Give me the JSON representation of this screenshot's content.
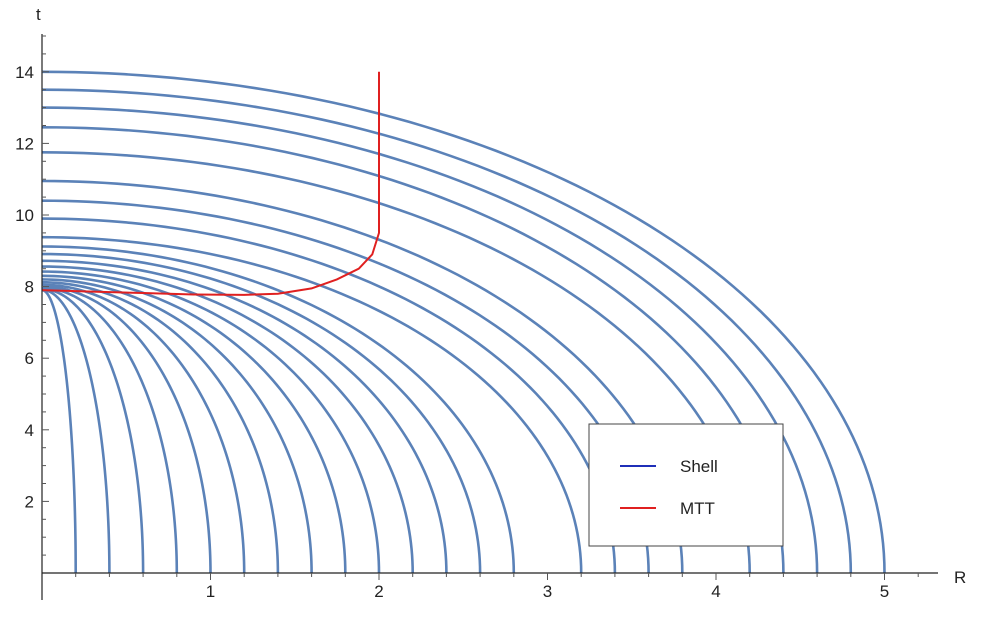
{
  "chart_data": {
    "type": "line",
    "title": "",
    "xlabel": "R",
    "ylabel": "t",
    "xlim": [
      0,
      5.3
    ],
    "ylim": [
      0,
      15
    ],
    "xticks": [
      1,
      2,
      3,
      4,
      5
    ],
    "yticks": [
      2,
      4,
      6,
      8,
      10,
      12,
      14
    ],
    "legend_position": "bottom-right",
    "legend": [
      {
        "name": "Shell",
        "color": "#1f2fb8"
      },
      {
        "name": "MTT",
        "color": "#e02020"
      }
    ],
    "series": [
      {
        "name": "Shell",
        "color": "#5b82b8",
        "shells": [
          {
            "R0": 0.2,
            "t_top": 7.9
          },
          {
            "R0": 0.4,
            "t_top": 7.91
          },
          {
            "R0": 0.6,
            "t_top": 7.93
          },
          {
            "R0": 0.8,
            "t_top": 7.96
          },
          {
            "R0": 1.0,
            "t_top": 8.0
          },
          {
            "R0": 1.2,
            "t_top": 8.05
          },
          {
            "R0": 1.4,
            "t_top": 8.12
          },
          {
            "R0": 1.6,
            "t_top": 8.2
          },
          {
            "R0": 1.8,
            "t_top": 8.3
          },
          {
            "R0": 2.0,
            "t_top": 8.42
          },
          {
            "R0": 2.2,
            "t_top": 8.56
          },
          {
            "R0": 2.4,
            "t_top": 8.72
          },
          {
            "R0": 2.6,
            "t_top": 8.91
          },
          {
            "R0": 2.8,
            "t_top": 9.12
          },
          {
            "R0": 3.2,
            "t_top": 9.38
          },
          {
            "R0": 3.4,
            "t_top": 9.9
          },
          {
            "R0": 3.6,
            "t_top": 10.4
          },
          {
            "R0": 3.8,
            "t_top": 10.95
          },
          {
            "R0": 4.2,
            "t_top": 11.75
          },
          {
            "R0": 4.4,
            "t_top": 12.45
          },
          {
            "R0": 4.6,
            "t_top": 13.0
          },
          {
            "R0": 4.8,
            "t_top": 13.5
          },
          {
            "R0": 5.0,
            "t_top": 14.0
          }
        ]
      },
      {
        "name": "MTT",
        "color": "#e02020",
        "points": [
          {
            "x": 0.0,
            "y": 7.9
          },
          {
            "x": 0.3,
            "y": 7.86
          },
          {
            "x": 0.6,
            "y": 7.82
          },
          {
            "x": 0.9,
            "y": 7.78
          },
          {
            "x": 1.2,
            "y": 7.77
          },
          {
            "x": 1.4,
            "y": 7.8
          },
          {
            "x": 1.6,
            "y": 7.95
          },
          {
            "x": 1.75,
            "y": 8.2
          },
          {
            "x": 1.88,
            "y": 8.5
          },
          {
            "x": 1.96,
            "y": 8.9
          },
          {
            "x": 2.0,
            "y": 9.5
          },
          {
            "x": 2.0,
            "y": 11.0
          },
          {
            "x": 2.0,
            "y": 14.0
          }
        ]
      }
    ]
  }
}
